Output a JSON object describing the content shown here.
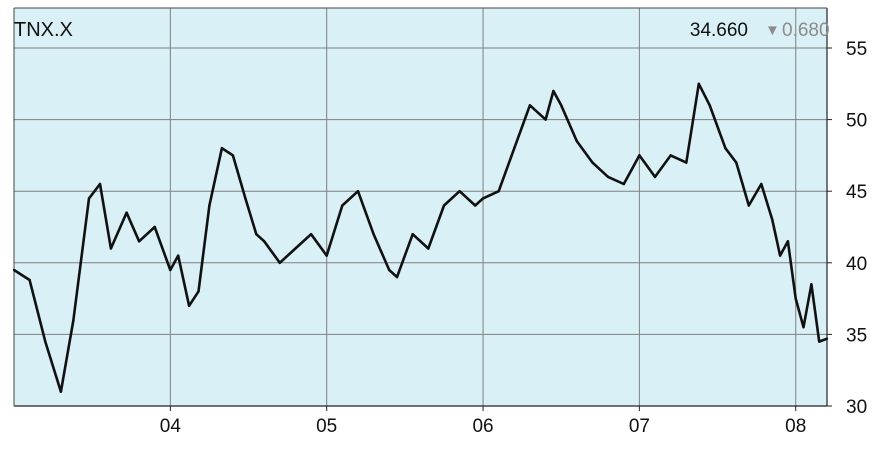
{
  "header": {
    "symbol": "TNX.X",
    "last_price": "34.660",
    "change_arrow": "▼",
    "change": "0.680"
  },
  "colors": {
    "plot_background": "#d8f0f6",
    "grid": "#7f7f7f",
    "price_line": "#111111",
    "change_down": "#8c8c8c",
    "axis_text": "#111111"
  },
  "chart_data": {
    "type": "line",
    "title": "TNX.X",
    "xlabel": "",
    "ylabel": "",
    "ylim": [
      30,
      55
    ],
    "yticks": [
      30,
      35,
      40,
      45,
      50,
      55
    ],
    "y_axis_side": "right",
    "xlim": [
      2003.0,
      2008.2
    ],
    "xticks": [
      {
        "label": "04",
        "x": 2004.0
      },
      {
        "label": "05",
        "x": 2005.0
      },
      {
        "label": "06",
        "x": 2006.0
      },
      {
        "label": "07",
        "x": 2007.0
      },
      {
        "label": "08",
        "x": 2008.0
      }
    ],
    "grid": true,
    "series": [
      {
        "x": [
          2003.0,
          2003.1,
          2003.2,
          2003.3,
          2003.38,
          2003.48,
          2003.55,
          2003.62,
          2003.72,
          2003.8,
          2003.9,
          2004.0,
          2004.05,
          2004.12,
          2004.18,
          2004.25,
          2004.33,
          2004.4,
          2004.48,
          2004.55,
          2004.6,
          2004.7,
          2004.8,
          2004.9,
          2005.0,
          2005.1,
          2005.2,
          2005.3,
          2005.4,
          2005.45,
          2005.55,
          2005.65,
          2005.75,
          2005.85,
          2005.95,
          2006.0,
          2006.1,
          2006.2,
          2006.3,
          2006.4,
          2006.45,
          2006.5,
          2006.6,
          2006.7,
          2006.8,
          2006.9,
          2007.0,
          2007.1,
          2007.2,
          2007.3,
          2007.38,
          2007.45,
          2007.55,
          2007.62,
          2007.7,
          2007.78,
          2007.85,
          2007.9,
          2007.95,
          2008.0,
          2008.05,
          2008.1,
          2008.15,
          2008.2
        ],
        "y": [
          39.5,
          38.8,
          34.5,
          31.0,
          36.0,
          44.5,
          45.5,
          41.0,
          43.5,
          41.5,
          42.5,
          39.5,
          40.5,
          37.0,
          38.0,
          44.0,
          48.0,
          47.5,
          44.5,
          42.0,
          41.5,
          40.0,
          41.0,
          42.0,
          40.5,
          44.0,
          45.0,
          42.0,
          39.5,
          39.0,
          42.0,
          41.0,
          44.0,
          45.0,
          44.0,
          44.5,
          45.0,
          48.0,
          51.0,
          50.0,
          52.0,
          51.0,
          48.5,
          47.0,
          46.0,
          45.5,
          47.5,
          46.0,
          47.5,
          47.0,
          52.5,
          51.0,
          48.0,
          47.0,
          44.0,
          45.5,
          43.0,
          40.5,
          41.5,
          37.5,
          35.5,
          38.5,
          34.5,
          34.7
        ]
      }
    ]
  }
}
